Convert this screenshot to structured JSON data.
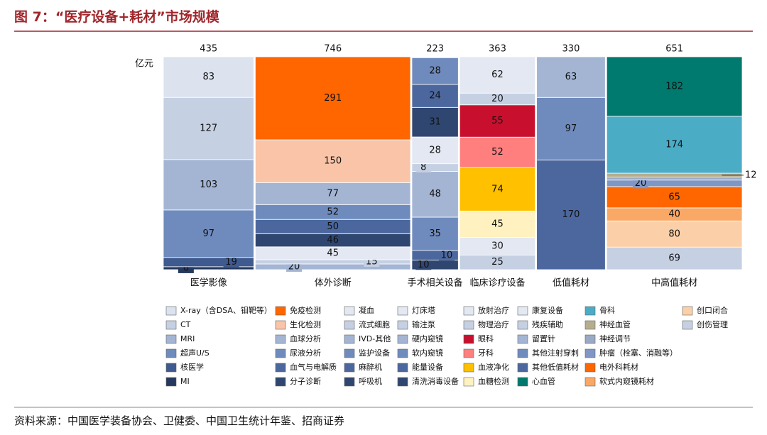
{
  "chart_data": {
    "type": "mekko",
    "title": "图 7：“医疗设备+耗材”市场规模",
    "unit": "亿元",
    "source": "资料来源：中国医学装备协会、卫健委、中国卫生统计年鉴、招商证券",
    "columns": [
      {
        "name": "医学影像",
        "total": 435,
        "segments": [
          {
            "name": "X-ray（含DSA、钼靶等）",
            "color": "#dce3ef",
            "value": 83
          },
          {
            "name": "CT",
            "color": "#c5d0e3",
            "value": 127
          },
          {
            "name": "MRI",
            "color": "#a4b5d4",
            "value": 103
          },
          {
            "name": "超声U/S",
            "color": "#6f8bbd",
            "value": 97
          },
          {
            "name": "核医学",
            "color": "#3f5a8f",
            "value": 19
          },
          {
            "name": "MI",
            "color": "#25385e",
            "value": 6
          }
        ]
      },
      {
        "name": "体外诊断",
        "total": 746,
        "segments": [
          {
            "name": "免疫检测",
            "color": "#ff6600",
            "value": 291
          },
          {
            "name": "生化检测",
            "color": "#f9c4a8",
            "value": 150
          },
          {
            "name": "血球分析",
            "color": "#a4b5d4",
            "value": 77
          },
          {
            "name": "尿液分析",
            "color": "#6f8bbd",
            "value": 52
          },
          {
            "name": "血气与电解质",
            "color": "#4b679e",
            "value": 50
          },
          {
            "name": "分子诊断",
            "color": "#2f4670",
            "value": 46
          },
          {
            "name": "凝血",
            "color": "#e3e8f2",
            "value": 45
          },
          {
            "name": "流式细胞",
            "color": "#c5d0e3",
            "value": 15
          },
          {
            "name": "IVD-其他",
            "color": "#a4b5d4",
            "value": 20
          }
        ]
      },
      {
        "name": "手术相关设备",
        "total": 223,
        "segments": [
          {
            "name": "监护设备",
            "color": "#6f8bbd",
            "value": 28
          },
          {
            "name": "麻醉机",
            "color": "#4b679e",
            "value": 24
          },
          {
            "name": "呼吸机",
            "color": "#2f4670",
            "value": 31
          },
          {
            "name": "灯床塔",
            "color": "#e3e8f2",
            "value": 28
          },
          {
            "name": "输注泵",
            "color": "#c5d0e3",
            "value": 8
          },
          {
            "name": "硬内窥镜",
            "color": "#a4b5d4",
            "value": 48
          },
          {
            "name": "软内窥镜",
            "color": "#6f8bbd",
            "value": 35
          },
          {
            "name": "能量设备",
            "color": "#4b679e",
            "value": 10
          },
          {
            "name": "清洗消毒设备",
            "color": "#2f4670",
            "value": 10
          }
        ]
      },
      {
        "name": "临床诊疗设备",
        "total": 363,
        "segments": [
          {
            "name": "放射治疗",
            "color": "#e3e8f2",
            "value": 62
          },
          {
            "name": "物理治疗",
            "color": "#c5d0e3",
            "value": 20
          },
          {
            "name": "眼科",
            "color": "#c8102e",
            "value": 55
          },
          {
            "name": "牙科",
            "color": "#ff7f7f",
            "value": 52
          },
          {
            "name": "血液净化",
            "color": "#ffc000",
            "value": 74
          },
          {
            "name": "血糖检测",
            "color": "#fff2c0",
            "value": 45
          },
          {
            "name": "康复设备",
            "color": "#e3e8f2",
            "value": 30
          },
          {
            "name": "残疾辅助",
            "color": "#c5d0e3",
            "value": 25
          }
        ]
      },
      {
        "name": "低值耗材",
        "total": 330,
        "segments": [
          {
            "name": "留置针",
            "color": "#a4b5d4",
            "value": 63
          },
          {
            "name": "其他注射穿刺",
            "color": "#6f8bbd",
            "value": 97
          },
          {
            "name": "其他低值耗材",
            "color": "#4b679e",
            "value": 170
          }
        ]
      },
      {
        "name": "中高值耗材",
        "total": 651,
        "segments": [
          {
            "name": "心血管",
            "color": "#007a6e",
            "value": 182
          },
          {
            "name": "骨科",
            "color": "#4bacc6",
            "value": 174
          },
          {
            "name": "神经血管",
            "color": "#b5ad8e",
            "value": 12
          },
          {
            "name": "神经调节",
            "color": "#9aa9c4",
            "value": 9,
            "labeled": false
          },
          {
            "name": "肿瘤（栓塞、消融等）",
            "color": "#7f97c6",
            "value": 20
          },
          {
            "name": "电外科耗材",
            "color": "#ff6600",
            "value": 65
          },
          {
            "name": "软式内窥镜耗材",
            "color": "#f9a866",
            "value": 40
          },
          {
            "name": "创口闭合",
            "color": "#fbd0a8",
            "value": 80
          },
          {
            "name": "创伤管理",
            "color": "#c5d0e3",
            "value": 69
          }
        ]
      }
    ]
  }
}
